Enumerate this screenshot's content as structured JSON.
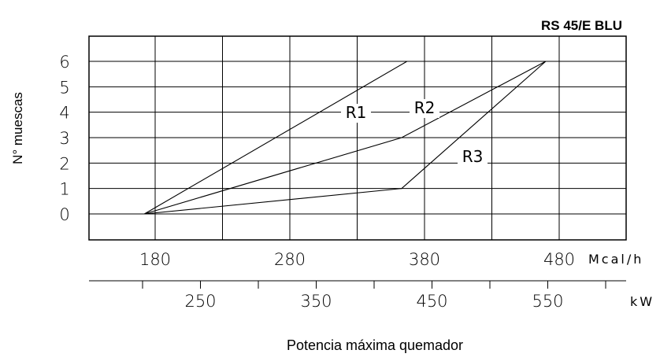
{
  "chart_data": {
    "type": "line",
    "title": "RS 45/E BLU",
    "ylabel": "N° muescas",
    "xlabel": "Potencia máxima quemador",
    "x_unit": "Mcal/h",
    "x2_unit": "kW",
    "y_ticks": [
      "0",
      "1",
      "2",
      "3",
      "4",
      "5",
      "6"
    ],
    "ylim": [
      0,
      6
    ],
    "x_ticks": [
      "180",
      "280",
      "380",
      "480"
    ],
    "x2_ticks": [
      "250",
      "350",
      "450",
      "550"
    ],
    "xlim": [
      130,
      500
    ],
    "series": [
      {
        "name": "R1",
        "points": [
          [
            172,
            0
          ],
          [
            367,
            6
          ]
        ]
      },
      {
        "name": "R2",
        "points": [
          [
            172,
            0
          ],
          [
            363,
            3
          ],
          [
            470,
            6
          ]
        ]
      },
      {
        "name": "R3",
        "points": [
          [
            172,
            0
          ],
          [
            363,
            1
          ],
          [
            470,
            6
          ]
        ]
      }
    ]
  }
}
